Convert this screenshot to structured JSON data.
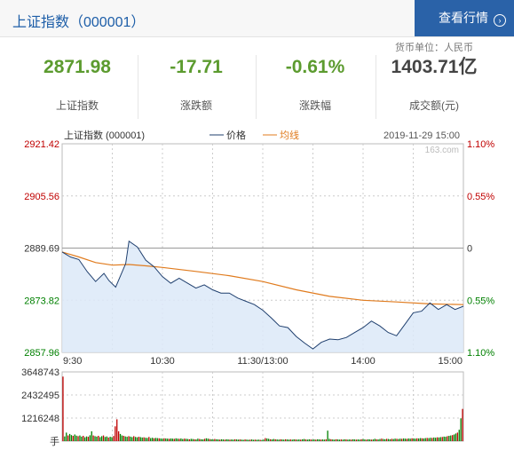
{
  "header": {
    "title": "上证指数（000001）",
    "button_label": "查看行情",
    "unit_note": "货币单位：人民币"
  },
  "stats": [
    {
      "value": "2871.98",
      "label": "上证指数"
    },
    {
      "value": "-17.71",
      "label": "涨跌额"
    },
    {
      "value": "-0.61%",
      "label": "涨跌幅"
    },
    {
      "value": "1403.71亿",
      "label": "成交额(元)"
    }
  ],
  "colors": {
    "price": "#1f3f6e",
    "avg": "#e07b1e",
    "up": "#c00000",
    "down": "#008000",
    "fill": "#dce9f8"
  },
  "chart_data": {
    "type": "line",
    "title": "上证指数 (000001)",
    "date": "2019-11-29 15:00",
    "watermark": "163.com",
    "legend": [
      "价格",
      "均线"
    ],
    "y_price_ticks": [
      "2921.42",
      "2905.56",
      "2889.69",
      "2873.82",
      "2857.96"
    ],
    "y_pct_ticks": [
      "1.10%",
      "0.55%",
      "0",
      "0.55%",
      "1.10%"
    ],
    "ylim": [
      2857.96,
      2921.42
    ],
    "prev_close": 2889.69,
    "x_ticks": [
      "9:30",
      "10:30",
      "11:30/13:00",
      "14:00",
      "15:00"
    ],
    "minutes_total": 240,
    "series": [
      {
        "name": "价格",
        "points": [
          [
            0,
            2888.5
          ],
          [
            5,
            2887.0
          ],
          [
            10,
            2886.2
          ],
          [
            15,
            2882.5
          ],
          [
            20,
            2879.5
          ],
          [
            25,
            2882.0
          ],
          [
            28,
            2879.8
          ],
          [
            32,
            2877.8
          ],
          [
            38,
            2885.0
          ],
          [
            40,
            2891.8
          ],
          [
            45,
            2890.0
          ],
          [
            50,
            2886.0
          ],
          [
            55,
            2884.0
          ],
          [
            60,
            2881.0
          ],
          [
            65,
            2879.0
          ],
          [
            70,
            2880.5
          ],
          [
            75,
            2879.0
          ],
          [
            80,
            2877.5
          ],
          [
            85,
            2878.5
          ],
          [
            90,
            2877.0
          ],
          [
            95,
            2876.0
          ],
          [
            100,
            2876.0
          ],
          [
            105,
            2874.5
          ],
          [
            110,
            2873.5
          ],
          [
            115,
            2872.5
          ],
          [
            120,
            2870.8
          ],
          [
            125,
            2868.5
          ],
          [
            130,
            2866.0
          ],
          [
            135,
            2865.5
          ],
          [
            140,
            2862.8
          ],
          [
            145,
            2860.8
          ],
          [
            150,
            2859.0
          ],
          [
            155,
            2861.0
          ],
          [
            160,
            2862.0
          ],
          [
            165,
            2861.8
          ],
          [
            170,
            2862.5
          ],
          [
            175,
            2864.0
          ],
          [
            180,
            2865.5
          ],
          [
            185,
            2867.5
          ],
          [
            190,
            2866.0
          ],
          [
            195,
            2864.0
          ],
          [
            200,
            2863.0
          ],
          [
            205,
            2866.5
          ],
          [
            210,
            2870.0
          ],
          [
            215,
            2870.5
          ],
          [
            220,
            2873.0
          ],
          [
            225,
            2871.0
          ],
          [
            230,
            2872.5
          ],
          [
            235,
            2871.0
          ],
          [
            240,
            2872.0
          ]
        ]
      },
      {
        "name": "均线",
        "points": [
          [
            0,
            2888.5
          ],
          [
            10,
            2887.0
          ],
          [
            20,
            2885.3
          ],
          [
            30,
            2884.5
          ],
          [
            40,
            2884.7
          ],
          [
            50,
            2884.3
          ],
          [
            60,
            2883.8
          ],
          [
            80,
            2882.6
          ],
          [
            100,
            2881.3
          ],
          [
            120,
            2879.5
          ],
          [
            140,
            2877.0
          ],
          [
            160,
            2875.0
          ],
          [
            180,
            2873.8
          ],
          [
            200,
            2873.3
          ],
          [
            220,
            2872.7
          ],
          [
            240,
            2872.5
          ]
        ]
      }
    ],
    "volume": {
      "y_ticks": [
        "3648743",
        "2432495",
        "1216248",
        "手"
      ],
      "ymax": 3648743,
      "values": [
        3400000,
        250000,
        450000,
        300000,
        380000,
        320000,
        280000,
        350000,
        290000,
        260000,
        300000,
        240000,
        280000,
        200000,
        250000,
        230000,
        310000,
        520000,
        300000,
        260000,
        240000,
        280000,
        210000,
        260000,
        300000,
        220000,
        250000,
        190000,
        230000,
        210000,
        270000,
        780000,
        1150000,
        520000,
        380000,
        300000,
        280000,
        250000,
        230000,
        260000,
        240000,
        210000,
        260000,
        220000,
        200000,
        230000,
        210000,
        190000,
        200000,
        180000,
        170000,
        220000,
        160000,
        180000,
        150000,
        170000,
        160000,
        150000,
        140000,
        130000,
        150000,
        140000,
        130000,
        120000,
        140000,
        130000,
        120000,
        150000,
        130000,
        120000,
        140000,
        110000,
        130000,
        120000,
        110000,
        100000,
        120000,
        110000,
        100000,
        90000,
        130000,
        110000,
        100000,
        90000,
        120000,
        150000,
        130000,
        110000,
        100000,
        90000,
        110000,
        100000,
        90000,
        80000,
        100000,
        90000,
        80000,
        100000,
        90000,
        80000,
        90000,
        80000,
        100000,
        90000,
        80000,
        90000,
        80000,
        70000,
        90000,
        80000,
        70000,
        80000,
        90000,
        70000,
        80000,
        70000,
        80000,
        70000,
        60000,
        80000,
        160000,
        140000,
        120000,
        100000,
        90000,
        110000,
        100000,
        90000,
        80000,
        100000,
        90000,
        80000,
        100000,
        90000,
        80000,
        90000,
        80000,
        100000,
        90000,
        80000,
        90000,
        80000,
        100000,
        110000,
        90000,
        80000,
        100000,
        90000,
        80000,
        90000,
        80000,
        100000,
        90000,
        80000,
        90000,
        80000,
        100000,
        550000,
        120000,
        100000,
        90000,
        80000,
        100000,
        90000,
        80000,
        90000,
        80000,
        100000,
        90000,
        80000,
        90000,
        80000,
        100000,
        90000,
        80000,
        90000,
        80000,
        100000,
        110000,
        90000,
        80000,
        100000,
        90000,
        80000,
        90000,
        120000,
        100000,
        90000,
        110000,
        130000,
        110000,
        100000,
        120000,
        110000,
        100000,
        120000,
        110000,
        130000,
        120000,
        110000,
        130000,
        120000,
        140000,
        130000,
        120000,
        140000,
        130000,
        150000,
        140000,
        130000,
        150000,
        140000,
        160000,
        150000,
        140000,
        160000,
        170000,
        160000,
        180000,
        170000,
        190000,
        180000,
        200000,
        190000,
        210000,
        220000,
        240000,
        230000,
        260000,
        280000,
        300000,
        320000,
        350000,
        400000,
        450000,
        600000,
        1200000,
        1700000
      ],
      "colors_pattern": "mixed"
    }
  }
}
